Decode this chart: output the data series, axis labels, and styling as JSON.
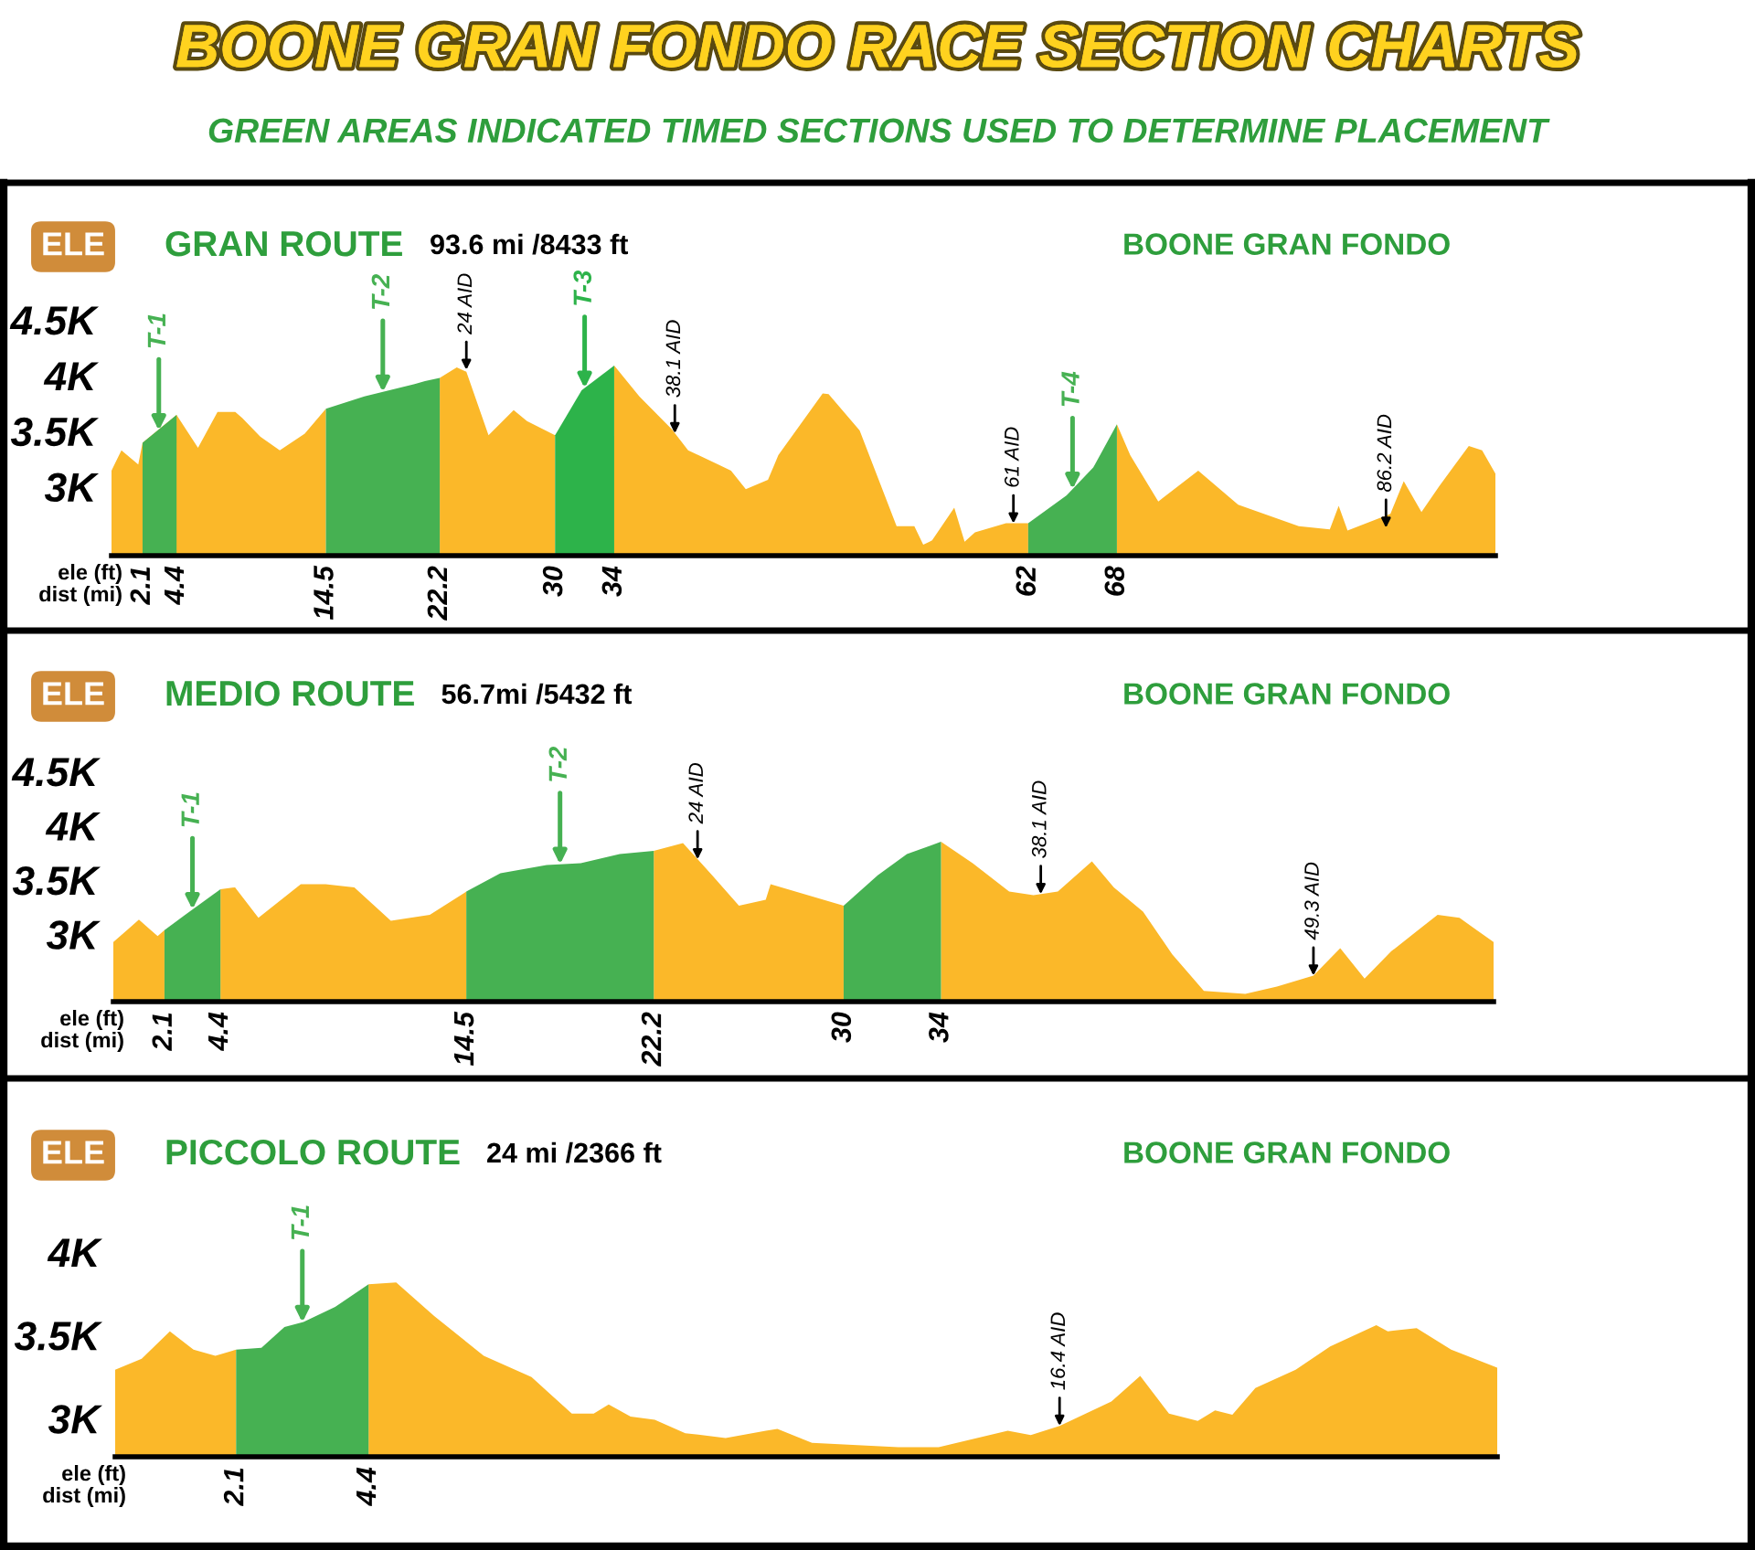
{
  "chart_data": [
    {
      "type": "area",
      "title": "GRAN ROUTE",
      "subtitle": "93.6 mi /8433 ft",
      "xlabel": "dist (mi)",
      "ylabel": "ele (ft)",
      "annotations": [
        "BOONE GRAN FONDO RACE SECTION CHARTS",
        "GREEN AREAS INDICATED TIMED SECTIONS USED TO DETERMINE PLACEMENT",
        "ELE",
        "BOONE GRAN FONDO",
        {
          "text": "T-1",
          "x": 3.2,
          "y": 3505
        },
        {
          "text": "T-2",
          "x": 18.35,
          "y": 3852
        },
        {
          "text": "T-3",
          "x": 32,
          "y": 3887
        },
        {
          "text": "T-4",
          "x": 65,
          "y": 2978
        },
        {
          "text": "24 AID",
          "x": 24,
          "y": 4050
        },
        {
          "text": "38.1 AID",
          "x": 38.1,
          "y": 3480
        },
        {
          "text": "61 AID",
          "x": 61,
          "y": 2670
        },
        {
          "text": "86.2 AID",
          "x": 86.2,
          "y": 2630
        }
      ],
      "xlim": [
        0,
        93.6
      ],
      "ylim": [
        2380,
        4500
      ],
      "xticks": [
        2.1,
        4.4,
        14.5,
        22.2,
        30,
        34,
        62,
        68
      ],
      "yticks": [
        {
          "value": 3000,
          "label": "3K"
        },
        {
          "value": 3500,
          "label": "3.5K"
        },
        {
          "value": 4000,
          "label": "4K"
        },
        {
          "value": 4500,
          "label": "4.5K"
        }
      ],
      "series": [
        {
          "color": "#fbb829",
          "x": [
            0,
            0.67,
            1.81,
            2.1,
            4.4,
            5.85,
            7.17,
            8.37,
            8.85,
            10.06,
            11.38,
            13.07,
            14.5,
            17.1,
            20.5,
            21.2,
            22.2,
            23.35,
            24.0,
            25.5,
            27.2,
            28.1,
            30,
            31.8,
            34,
            35.7,
            37.9,
            39.0,
            41.9,
            42.9,
            44.4,
            45.1,
            48.1,
            48.5,
            50.6,
            53.1,
            54.3,
            54.9,
            55.5,
            57.0,
            57.7,
            58.4,
            60.5,
            62,
            64.6,
            66.4,
            68,
            68.9,
            70.8,
            73.5,
            76.2,
            80.3,
            82.4,
            83.0,
            83.6,
            86.5,
            87.4,
            88.6,
            89.8,
            91.8,
            92.7,
            93.6
          ],
          "values": [
            3145,
            3328,
            3200,
            3395,
            3645,
            3350,
            3672,
            3672,
            3617,
            3450,
            3328,
            3478,
            3700,
            null,
            null,
            null,
            3978,
            4072,
            4033,
            3462,
            3689,
            3589,
            3462,
            null,
            4089,
            3812,
            3517,
            3328,
            3145,
            2978,
            3061,
            3283,
            3839,
            3833,
            3506,
            2645,
            2645,
            2478,
            2517,
            2811,
            2506,
            2589,
            2672,
            2672,
            null,
            null,
            3561,
            3283,
            2867,
            3145,
            2839,
            2645,
            2617,
            2828,
            2606,
            2756,
            3050,
            2772,
            3005,
            3367,
            3328,
            3117
          ]
        },
        {
          "color": "#46b152",
          "x": [
            2.1,
            4.4
          ],
          "values": [
            3395,
            3645
          ]
        },
        {
          "color": "#46b152",
          "x": [
            14.5,
            17.1,
            20.5,
            21.2,
            22.2
          ],
          "values": [
            3700,
            3812,
            3922,
            3950,
            3978
          ]
        },
        {
          "color": "#2db34a",
          "x": [
            30,
            31.8,
            34
          ],
          "values": [
            3462,
            3867,
            4089
          ]
        },
        {
          "color": "#46b152",
          "x": [
            62,
            64.6,
            66.4,
            68
          ],
          "values": [
            2672,
            2922,
            3172,
            3561
          ]
        }
      ]
    },
    {
      "type": "area",
      "title": "MEDIO ROUTE",
      "subtitle": "56.7mi /5432 ft",
      "xlabel": "dist (mi)",
      "ylabel": "ele (ft)",
      "annotations": [
        "ELE",
        "BOONE GRAN FONDO",
        {
          "text": "T-1",
          "x": 3.25,
          "y": 3229
        },
        {
          "text": "T-2",
          "x": 18.35,
          "y": 3645
        },
        {
          "text": "24 AID",
          "x": 24,
          "y": 3690
        },
        {
          "text": "38.1 AID",
          "x": 38.1,
          "y": 3370
        },
        {
          "text": "49.3 AID",
          "x": 49.3,
          "y": 2620
        }
      ],
      "xlim": [
        0,
        56.7
      ],
      "ylim": [
        2380,
        4500
      ],
      "xticks": [
        2.1,
        4.4,
        14.5,
        22.2,
        30,
        34
      ],
      "yticks": [
        {
          "value": 3000,
          "label": "3K"
        },
        {
          "value": 3500,
          "label": "3.5K"
        },
        {
          "value": 4000,
          "label": "4K"
        },
        {
          "value": 4500,
          "label": "4.5K"
        }
      ],
      "series": [
        {
          "color": "#fbb829",
          "x": [
            0,
            1.05,
            1.82,
            2.1,
            2.95,
            4.4,
            5.0,
            5.96,
            7.7,
            8.72,
            9.9,
            11.4,
            13.0,
            14.5,
            15.9,
            17.8,
            19.2,
            20.8,
            22.2,
            23.4,
            24.6,
            25.7,
            26.8,
            27.0,
            30,
            31.4,
            32.6,
            34,
            35.3,
            36.8,
            37.8,
            38.8,
            40.2,
            41.1,
            42.3,
            43.5,
            44.8,
            46.5,
            47.8,
            49.3,
            50.4,
            51.4,
            52.5,
            54.4,
            55.3,
            56.7
          ],
          "values": [
            2928,
            3134,
            2983,
            3039,
            null,
            3415,
            3432,
            3151,
            3460,
            3460,
            3432,
            3124,
            3180,
            3393,
            null,
            null,
            null,
            null,
            3768,
            3840,
            3544,
            3264,
            3319,
            3460,
            3264,
            null,
            null,
            3852,
            3655,
            3393,
            3360,
            3393,
            3672,
            3432,
            3208,
            2815,
            2479,
            2452,
            2519,
            2620,
            2872,
            2592,
            2844,
            3180,
            3151,
            2928
          ]
        },
        {
          "color": "#46b152",
          "x": [
            2.1,
            2.95,
            4.4
          ],
          "values": [
            3039,
            3180,
            3415
          ]
        },
        {
          "color": "#46b152",
          "x": [
            14.5,
            15.9,
            17.8,
            19.2,
            20.8,
            22.2
          ],
          "values": [
            3393,
            3561,
            3638,
            3655,
            3739,
            3768
          ]
        },
        {
          "color": "#46b152",
          "x": [
            30,
            31.4,
            32.6,
            34
          ],
          "values": [
            3264,
            3544,
            3739,
            3852
          ]
        }
      ]
    },
    {
      "type": "area",
      "title": "PICCOLO ROUTE",
      "subtitle": "24 mi /2366 ft",
      "xlabel": "dist (mi)",
      "ylabel": "ele (ft)",
      "annotations": [
        "ELE",
        "BOONE GRAN FONDO",
        {
          "text": "T-1",
          "x": 3.25,
          "y": 3578
        },
        {
          "text": "16.4 AID",
          "x": 16.4,
          "y": 2956
        }
      ],
      "xlim": [
        0,
        24
      ],
      "ylim": [
        2770,
        4000
      ],
      "xticks": [
        2.1,
        4.4
      ],
      "yticks": [
        {
          "value": 3000,
          "label": "3K"
        },
        {
          "value": 3500,
          "label": "3.5K"
        },
        {
          "value": 4000,
          "label": "4K"
        }
      ],
      "series": [
        {
          "color": "#fbb829",
          "x": [
            0,
            0.46,
            0.95,
            1.36,
            1.74,
            2.1,
            2.54,
            2.94,
            3.27,
            3.82,
            4.4,
            4.88,
            5.54,
            6.4,
            7.23,
            7.93,
            8.31,
            8.57,
            8.95,
            9.37,
            9.9,
            10.6,
            11.3,
            11.5,
            12.1,
            13.6,
            14.3,
            15.5,
            15.9,
            16.4,
            17.3,
            17.8,
            18.3,
            18.8,
            19.1,
            19.4,
            19.8,
            20.5,
            21.1,
            21.9,
            22.1,
            22.6,
            23.2,
            24
          ],
          "values": [
            3293,
            3359,
            3524,
            3414,
            3377,
            3414,
            null,
            null,
            null,
            null,
            3806,
            3817,
            3616,
            3377,
            3249,
            3029,
            3029,
            3084,
            3011,
            2993,
            2912,
            2883,
            2927,
            2938,
            2854,
            2828,
            2828,
            2927,
            2901,
            2956,
            3102,
            3256,
            3029,
            2985,
            3048,
            3022,
            3183,
            3293,
            3433,
            3561,
            3524,
            3543,
            3414,
            3305
          ]
        },
        {
          "color": "#46b152",
          "x": [
            2.1,
            2.54,
            2.94,
            3.27,
            3.82,
            4.4
          ],
          "values": [
            3414,
            3425,
            3550,
            3580,
            3671,
            3806
          ]
        }
      ]
    }
  ]
}
